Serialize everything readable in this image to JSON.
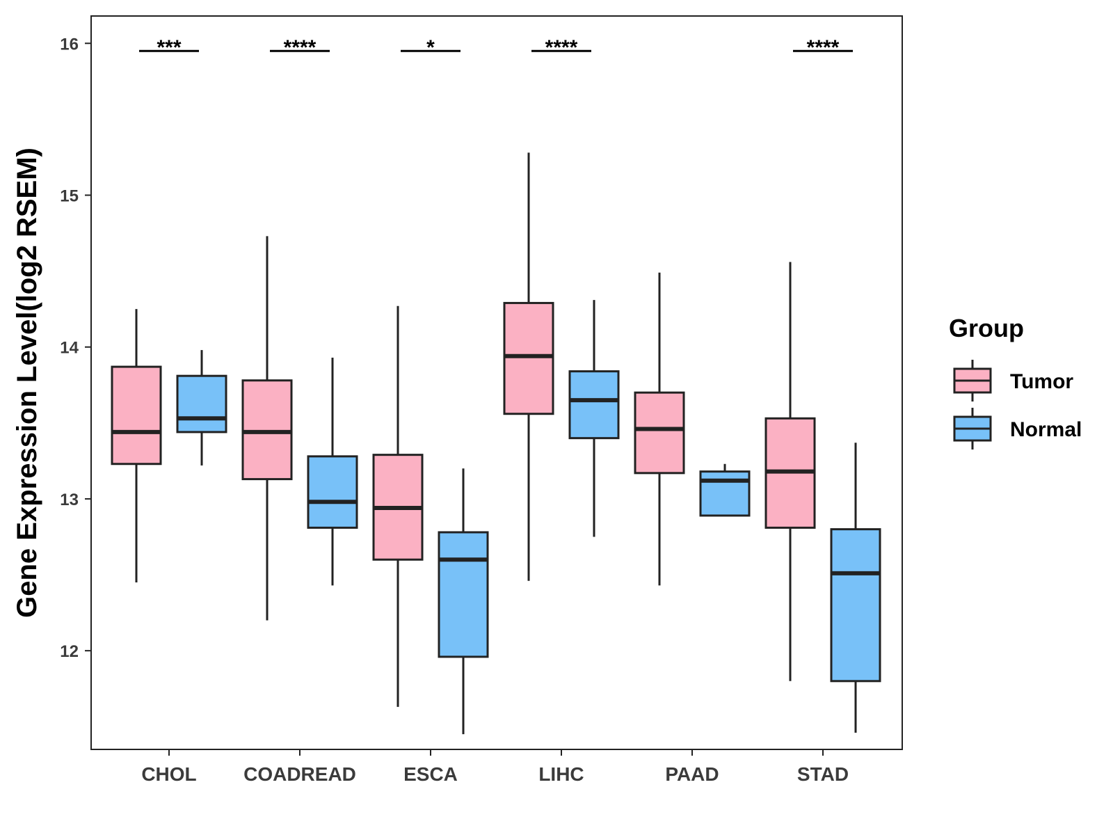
{
  "chart_data": {
    "type": "boxplot",
    "title": "",
    "xlabel": "",
    "ylabel": "Gene Expression Level(log2 RSEM)",
    "ylim": [
      11.35,
      16.18
    ],
    "yticks": [
      12,
      13,
      14,
      15,
      16
    ],
    "grid": false,
    "legend": {
      "title": "Group",
      "position": "right",
      "entries": [
        "Tumor",
        "Normal"
      ]
    },
    "colors": {
      "Tumor": "#FBB1C3",
      "Normal": "#78C1F8",
      "stroke": "#222222"
    },
    "categories": [
      "CHOL",
      "COADREAD",
      "ESCA",
      "LIHC",
      "PAAD",
      "STAD"
    ],
    "series": [
      {
        "name": "Tumor",
        "boxes": [
          {
            "min": 12.45,
            "q1": 13.23,
            "median": 13.44,
            "q3": 13.87,
            "max": 14.25
          },
          {
            "min": 12.2,
            "q1": 13.13,
            "median": 13.44,
            "q3": 13.78,
            "max": 14.73
          },
          {
            "min": 11.63,
            "q1": 12.6,
            "median": 12.94,
            "q3": 13.29,
            "max": 14.27
          },
          {
            "min": 12.46,
            "q1": 13.56,
            "median": 13.94,
            "q3": 14.29,
            "max": 15.28
          },
          {
            "min": 12.43,
            "q1": 13.17,
            "median": 13.46,
            "q3": 13.7,
            "max": 14.49
          },
          {
            "min": 11.8,
            "q1": 12.81,
            "median": 13.18,
            "q3": 13.53,
            "max": 14.56
          }
        ]
      },
      {
        "name": "Normal",
        "boxes": [
          {
            "min": 13.22,
            "q1": 13.44,
            "median": 13.53,
            "q3": 13.81,
            "max": 13.98
          },
          {
            "min": 12.43,
            "q1": 12.81,
            "median": 12.98,
            "q3": 13.28,
            "max": 13.93
          },
          {
            "min": 11.45,
            "q1": 11.96,
            "median": 12.6,
            "q3": 12.78,
            "max": 13.2
          },
          {
            "min": 12.75,
            "q1": 13.4,
            "median": 13.65,
            "q3": 13.84,
            "max": 14.31
          },
          {
            "min": 12.89,
            "q1": 12.89,
            "median": 13.12,
            "q3": 13.18,
            "max": 13.23
          },
          {
            "min": 11.46,
            "q1": 11.8,
            "median": 12.51,
            "q3": 12.8,
            "max": 13.37
          }
        ]
      }
    ],
    "significance": [
      {
        "category": "CHOL",
        "label": "***"
      },
      {
        "category": "COADREAD",
        "label": "****"
      },
      {
        "category": "ESCA",
        "label": "*"
      },
      {
        "category": "LIHC",
        "label": "****"
      },
      {
        "category": "STAD",
        "label": "****"
      }
    ],
    "significance_y": 15.95
  }
}
